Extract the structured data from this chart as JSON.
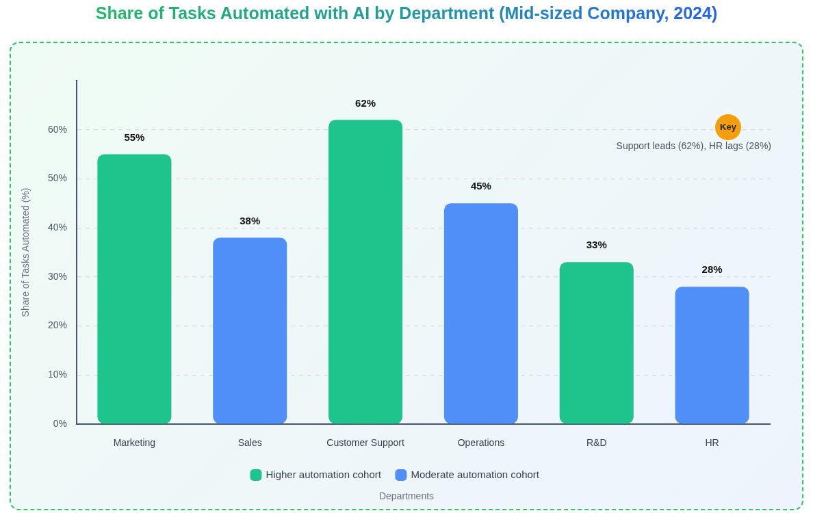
{
  "chart_data": {
    "type": "bar",
    "title": "Share of Tasks Automated with AI by Department (Mid-sized Company, 2024)",
    "xlabel": "Departments",
    "ylabel": "Share of Tasks Automated (%)",
    "annotations": [
      "Key",
      "Support leads (62%), HR lags (28%)"
    ],
    "categories": [
      "Marketing",
      "Sales",
      "Customer Support",
      "Operations",
      "R&D",
      "HR"
    ],
    "series": [
      {
        "name": "Higher automation cohort",
        "color": "#1fc48c",
        "values": [
          55,
          null,
          62,
          null,
          33,
          null
        ],
        "value_labels": [
          "55%",
          null,
          "62%",
          null,
          "33%",
          null
        ]
      },
      {
        "name": "Moderate automation cohort",
        "color": "#4f8ff7",
        "values": [
          null,
          38,
          null,
          45,
          null,
          28
        ],
        "value_labels": [
          null,
          "38%",
          null,
          "45%",
          null,
          "28%"
        ]
      }
    ],
    "ylim": [
      0,
      70
    ],
    "yticks": [
      {
        "value": 0,
        "label": "0%"
      },
      {
        "value": 10,
        "label": "10%"
      },
      {
        "value": 20,
        "label": "20%"
      },
      {
        "value": 30,
        "label": "30%"
      },
      {
        "value": 40,
        "label": "40%"
      },
      {
        "value": 50,
        "label": "50%"
      },
      {
        "value": 60,
        "label": "60%"
      }
    ],
    "grid": "y",
    "legend": "bottom"
  }
}
